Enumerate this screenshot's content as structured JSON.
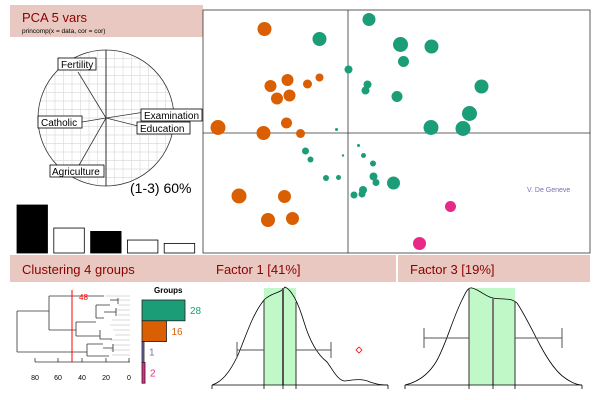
{
  "pca_panel": {
    "title": "PCA  5 vars",
    "subtitle": "princomp(x = data, cor = cor)",
    "variance_label": "(1-3) 60%",
    "variables": [
      "Fertility",
      "Examination",
      "Education",
      "Catholic",
      "Agriculture"
    ],
    "eigen_bars": [
      {
        "value": 1.0,
        "selected": true
      },
      {
        "value": 0.52,
        "selected": false
      },
      {
        "value": 0.45,
        "selected": true
      },
      {
        "value": 0.27,
        "selected": false
      },
      {
        "value": 0.2,
        "selected": false
      }
    ]
  },
  "clustering_panel": {
    "title": "Clustering  4 groups",
    "cut_label": "48",
    "axis_ticks": [
      "80",
      "60",
      "40",
      "20",
      "0"
    ],
    "groups_title": "Groups",
    "groups": [
      {
        "count": "28",
        "color": "#1b9e77",
        "share": 1.0
      },
      {
        "count": "16",
        "color": "#d95f02",
        "share": 0.57
      },
      {
        "count": "1",
        "color": "#7570b3",
        "share": 0.04
      },
      {
        "count": "2",
        "color": "#e7298a",
        "share": 0.07
      }
    ]
  },
  "factor1_panel": {
    "title": "Factor 1 [41%]"
  },
  "factor3_panel": {
    "title": "Factor 3 [19%]"
  },
  "chart_data": {
    "type": "scatter",
    "xlabel": "Factor 1",
    "ylabel": "Factor 3",
    "annotation": "V. De Geneve",
    "colors": {
      "orange": "#d95f02",
      "teal": "#1b9e77",
      "pink": "#e7298a"
    },
    "points": [
      [
        "orange",
        -1.67,
        2.08,
        7
      ],
      [
        "orange",
        -1.55,
        0.94,
        6
      ],
      [
        "orange",
        -1.21,
        1.06,
        6
      ],
      [
        "orange",
        -0.81,
        0.98,
        4.5
      ],
      [
        "orange",
        -0.57,
        1.11,
        4
      ],
      [
        "orange",
        -1.42,
        0.69,
        6
      ],
      [
        "orange",
        -1.17,
        0.75,
        6
      ],
      [
        "orange",
        -1.23,
        0.2,
        5.5
      ],
      [
        "orange",
        -2.6,
        0.11,
        7.5
      ],
      [
        "orange",
        -1.69,
        0,
        7
      ],
      [
        "orange",
        -0.95,
        -0.01,
        4.5
      ],
      [
        "orange",
        -2.18,
        -1.26,
        7.5
      ],
      [
        "orange",
        -1.27,
        -1.27,
        6.5
      ],
      [
        "orange",
        -1.6,
        -1.74,
        7
      ],
      [
        "orange",
        -1.11,
        -1.71,
        6.5
      ],
      [
        "teal",
        0.42,
        2.27,
        6.5
      ],
      [
        "teal",
        -0.57,
        1.88,
        7
      ],
      [
        "teal",
        1.05,
        1.77,
        7.5
      ],
      [
        "teal",
        1.67,
        1.73,
        7
      ],
      [
        "teal",
        1.11,
        1.43,
        5.5
      ],
      [
        "teal",
        0.01,
        1.27,
        4
      ],
      [
        "teal",
        0.39,
        0.97,
        4
      ],
      [
        "teal",
        0.35,
        0.85,
        4
      ],
      [
        "teal",
        0.98,
        0.73,
        5.5
      ],
      [
        "teal",
        2.67,
        0.93,
        7
      ],
      [
        "teal",
        2.43,
        0.39,
        7.5
      ],
      [
        "teal",
        1.66,
        0.11,
        7.5
      ],
      [
        "teal",
        2.3,
        0.09,
        7.5
      ],
      [
        "teal",
        -0.23,
        0.07,
        1.5
      ],
      [
        "teal",
        0.21,
        -0.25,
        1.5
      ],
      [
        "teal",
        -0.85,
        -0.36,
        3.5
      ],
      [
        "teal",
        -0.75,
        -0.53,
        3
      ],
      [
        "teal",
        -0.1,
        -0.45,
        1.2
      ],
      [
        "teal",
        0.31,
        -0.45,
        2.5
      ],
      [
        "teal",
        0.5,
        -0.61,
        3
      ],
      [
        "teal",
        -0.44,
        -0.9,
        3
      ],
      [
        "teal",
        -0.19,
        -0.89,
        2.5
      ],
      [
        "teal",
        0.51,
        -0.87,
        4
      ],
      [
        "teal",
        0.56,
        -0.99,
        3.5
      ],
      [
        "teal",
        0.91,
        -1.0,
        6.5
      ],
      [
        "teal",
        0.3,
        -1.14,
        4
      ],
      [
        "teal",
        0.28,
        -1.22,
        3.5
      ],
      [
        "teal",
        0.12,
        -1.24,
        3.5
      ],
      [
        "pink",
        2.05,
        -1.47,
        5.5
      ],
      [
        "pink",
        1.43,
        -2.21,
        6.5
      ]
    ]
  }
}
